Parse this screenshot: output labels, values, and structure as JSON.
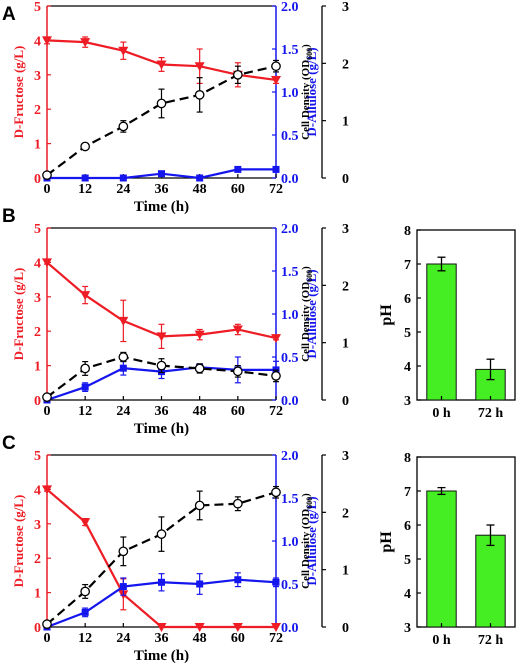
{
  "colors": {
    "fructose": "#ee1c25",
    "allulose": "#1515ee",
    "density": "#000000",
    "ph_bar": "#44ee22",
    "ph_bar_edge": "#111111"
  },
  "figure": {
    "panels": [
      {
        "letter": "A",
        "chart_data": {
          "type": "line",
          "xlabel": "Time (h)",
          "x_ticks": [
            "0",
            "12",
            "24",
            "36",
            "48",
            "60",
            "72"
          ],
          "xlim": [
            0,
            72
          ],
          "left_axis": {
            "label": "D-Fructose (g/L)",
            "ylim": [
              0,
              5
            ],
            "ticks": [
              "0",
              "1",
              "2",
              "3",
              "4",
              "5"
            ]
          },
          "mid_axis": {
            "label": "D-Allulose (g/L)",
            "ylim": [
              0,
              2
            ],
            "ticks": [
              "0.0",
              "0.5",
              "1.0",
              "1.5",
              "2.0"
            ]
          },
          "right_axis": {
            "label": "Cell Density (OD",
            "label_sub": "600",
            "label_end": ")",
            "ylim": [
              0,
              3
            ],
            "ticks": [
              "0",
              "1",
              "2",
              "3"
            ]
          },
          "series": [
            {
              "key": "fructose",
              "axis": "left",
              "marker": "triangle-down",
              "line": "solid",
              "x": [
                0,
                12,
                24,
                36,
                48,
                60,
                72
              ],
              "y": [
                4.0,
                3.95,
                3.7,
                3.3,
                3.25,
                3.0,
                2.85
              ],
              "err": [
                0.1,
                0.15,
                0.25,
                0.2,
                0.5,
                0.35,
                0.1
              ]
            },
            {
              "key": "allulose",
              "axis": "mid",
              "marker": "square",
              "line": "solid",
              "x": [
                0,
                12,
                24,
                36,
                48,
                60,
                72
              ],
              "y": [
                0.0,
                0.0,
                0.0,
                0.05,
                0.0,
                0.1,
                0.1
              ],
              "err": [
                0,
                0,
                0,
                0,
                0,
                0,
                0
              ]
            },
            {
              "key": "density",
              "axis": "right",
              "marker": "open-circle",
              "line": "dashed",
              "x": [
                0,
                12,
                24,
                36,
                48,
                60,
                72
              ],
              "y": [
                0.05,
                0.55,
                0.9,
                1.3,
                1.45,
                1.8,
                1.95
              ],
              "err": [
                0,
                0.05,
                0.1,
                0.25,
                0.3,
                0.15,
                0.1
              ]
            }
          ]
        }
      },
      {
        "letter": "B",
        "chart_data": {
          "type": "line",
          "xlabel": "Time (h)",
          "x_ticks": [
            "0",
            "12",
            "24",
            "36",
            "48",
            "60",
            "72"
          ],
          "xlim": [
            0,
            72
          ],
          "left_axis": {
            "label": "D-Fructose (g/L)",
            "ylim": [
              0,
              5
            ],
            "ticks": [
              "0",
              "1",
              "2",
              "3",
              "4",
              "5"
            ]
          },
          "mid_axis": {
            "label": "D-Allulose (g/L)",
            "ylim": [
              0,
              2
            ],
            "ticks": [
              "0.0",
              "0.5",
              "1.0",
              "1.5",
              "2.0"
            ]
          },
          "right_axis": {
            "label": "Cell Density (OD",
            "label_sub": "600",
            "label_end": ")",
            "ylim": [
              0,
              3
            ],
            "ticks": [
              "0",
              "1",
              "2",
              "3"
            ]
          },
          "series": [
            {
              "key": "fructose",
              "axis": "left",
              "marker": "triangle-down",
              "line": "solid",
              "x": [
                0,
                12,
                24,
                36,
                48,
                60,
                72
              ],
              "y": [
                4.0,
                3.05,
                2.3,
                1.85,
                1.9,
                2.05,
                1.8
              ],
              "err": [
                0.05,
                0.25,
                0.6,
                0.35,
                0.15,
                0.15,
                0.05
              ]
            },
            {
              "key": "allulose",
              "axis": "mid",
              "marker": "square",
              "line": "solid",
              "x": [
                0,
                12,
                24,
                36,
                48,
                60,
                72
              ],
              "y": [
                0.0,
                0.15,
                0.37,
                0.33,
                0.38,
                0.35,
                0.35
              ],
              "err": [
                0,
                0.05,
                0.08,
                0.08,
                0.04,
                0.15,
                0.1
              ]
            },
            {
              "key": "density",
              "axis": "right",
              "marker": "open-circle",
              "line": "dashed",
              "x": [
                0,
                12,
                24,
                36,
                48,
                60,
                72
              ],
              "y": [
                0.05,
                0.55,
                0.75,
                0.6,
                0.55,
                0.5,
                0.42
              ],
              "err": [
                0,
                0.12,
                0.08,
                0.12,
                0.08,
                0.1,
                0.1
              ]
            }
          ]
        },
        "ph_chart": {
          "type": "bar",
          "ylabel": "pH",
          "ylim": [
            3,
            8
          ],
          "ticks": [
            "3",
            "4",
            "5",
            "6",
            "7",
            "8"
          ],
          "categories": [
            "0 h",
            "72 h"
          ],
          "values": [
            7.0,
            3.9
          ],
          "err": [
            0.2,
            0.3
          ]
        }
      },
      {
        "letter": "C",
        "chart_data": {
          "type": "line",
          "xlabel": "Time (h)",
          "x_ticks": [
            "0",
            "12",
            "24",
            "36",
            "48",
            "60",
            "72"
          ],
          "xlim": [
            0,
            72
          ],
          "left_axis": {
            "label": "D-Fructose (g/L)",
            "ylim": [
              0,
              5
            ],
            "ticks": [
              "0",
              "1",
              "2",
              "3",
              "4",
              "5"
            ]
          },
          "mid_axis": {
            "label": "D-Allulose (g/L)",
            "ylim": [
              0,
              2
            ],
            "ticks": [
              "0.0",
              "0.5",
              "1.0",
              "1.5",
              "2.0"
            ]
          },
          "right_axis": {
            "label": "Cell Density (OD",
            "label_sub": "600",
            "label_end": ")",
            "ylim": [
              0,
              3
            ],
            "ticks": [
              "0",
              "1",
              "2",
              "3"
            ]
          },
          "series": [
            {
              "key": "fructose",
              "axis": "left",
              "marker": "triangle-down",
              "line": "solid",
              "x": [
                0,
                12,
                24,
                36,
                48,
                60,
                72
              ],
              "y": [
                4.0,
                3.05,
                0.95,
                0.0,
                0.0,
                0.0,
                0.0
              ],
              "err": [
                0.05,
                0.1,
                0.45,
                0,
                0,
                0,
                0
              ]
            },
            {
              "key": "allulose",
              "axis": "mid",
              "marker": "square",
              "line": "solid",
              "x": [
                0,
                12,
                24,
                36,
                48,
                60,
                72
              ],
              "y": [
                0.0,
                0.17,
                0.47,
                0.52,
                0.5,
                0.55,
                0.52
              ],
              "err": [
                0,
                0.05,
                0.1,
                0.1,
                0.12,
                0.08,
                0.05
              ]
            },
            {
              "key": "density",
              "axis": "right",
              "marker": "open-circle",
              "line": "dashed",
              "x": [
                0,
                12,
                24,
                36,
                48,
                60,
                72
              ],
              "y": [
                0.05,
                0.62,
                1.32,
                1.62,
                2.12,
                2.15,
                2.35
              ],
              "err": [
                0,
                0.12,
                0.25,
                0.3,
                0.25,
                0.12,
                0.1
              ]
            }
          ]
        },
        "ph_chart": {
          "type": "bar",
          "ylabel": "pH",
          "ylim": [
            3,
            8
          ],
          "ticks": [
            "3",
            "4",
            "5",
            "6",
            "7",
            "8"
          ],
          "categories": [
            "0 h",
            "72 h"
          ],
          "values": [
            7.0,
            5.7
          ],
          "err": [
            0.1,
            0.3
          ]
        }
      }
    ]
  }
}
